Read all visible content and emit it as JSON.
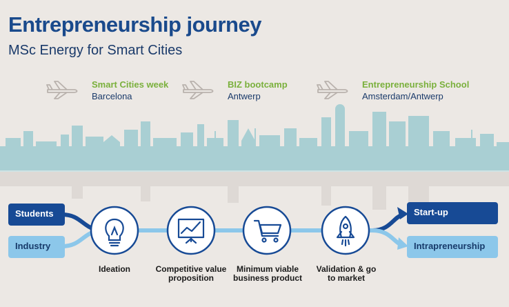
{
  "header": {
    "title": "Entrepreneurship journey",
    "subtitle": "MSc Energy for Smart Cities"
  },
  "trips": [
    {
      "name": "Smart Cities week",
      "place": "Barcelona"
    },
    {
      "name": "BIZ bootcamp",
      "place": "Antwerp"
    },
    {
      "name": "Entrepreneurship School",
      "place": "Amsterdam/Antwerp"
    }
  ],
  "paths": {
    "inputs": [
      "Students",
      "Industry"
    ],
    "outputs": [
      "Start-up",
      "Intrapreneurship"
    ]
  },
  "stages": [
    {
      "label": "Ideation",
      "icon": "lightbulb-icon"
    },
    {
      "label": "Competitive value proposition",
      "icon": "chart-board-icon"
    },
    {
      "label": "Minimum viable business product",
      "icon": "shopping-cart-icon"
    },
    {
      "label": "Validation & go to market",
      "icon": "rocket-icon"
    }
  ],
  "colors": {
    "dark_blue": "#174a95",
    "light_blue": "#8cc7ea",
    "green": "#7ab03c",
    "skyline": "#a9cfd3"
  }
}
